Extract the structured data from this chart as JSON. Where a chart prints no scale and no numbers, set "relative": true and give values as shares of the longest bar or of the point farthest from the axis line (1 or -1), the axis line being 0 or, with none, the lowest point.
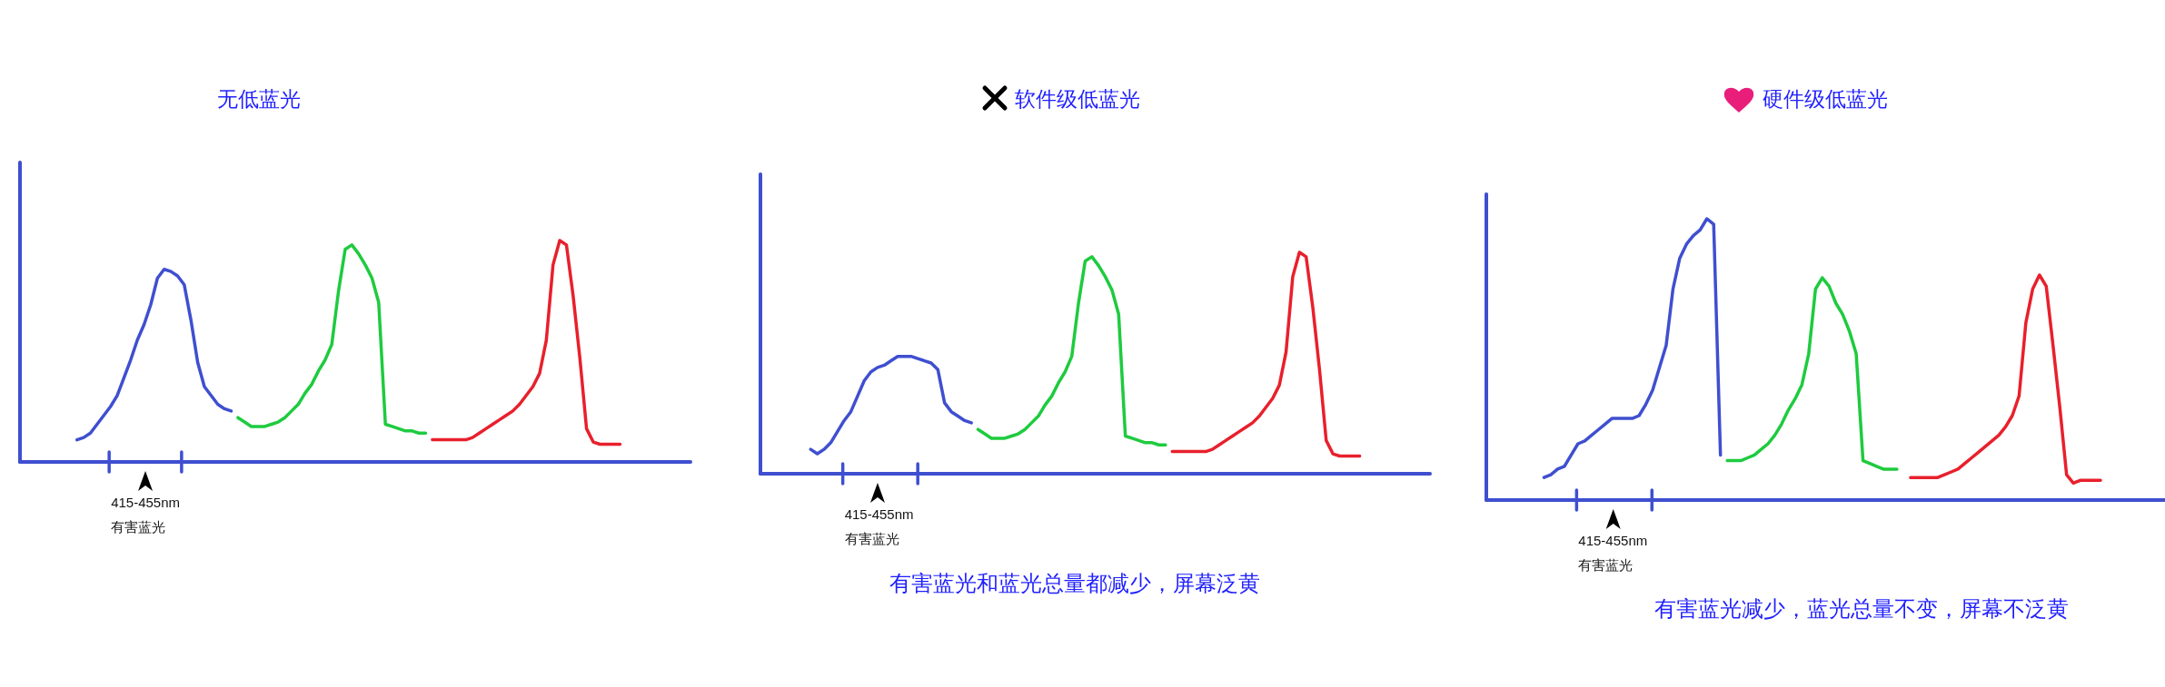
{
  "chart_data": [
    {
      "type": "line",
      "title": "无低蓝光",
      "relative": true,
      "categories": [
        null,
        null,
        null,
        null,
        null,
        null,
        null,
        null,
        null,
        null,
        null,
        null,
        null,
        null,
        null,
        null,
        null,
        null,
        null,
        null,
        null,
        null,
        null,
        null,
        null,
        null,
        null,
        null,
        null,
        null,
        null,
        null,
        null,
        null,
        null,
        null,
        null,
        null,
        null,
        null,
        null,
        null,
        null,
        null,
        null,
        null,
        null,
        null,
        null,
        null,
        null,
        null,
        null,
        null,
        null,
        null,
        null,
        null,
        null,
        null,
        null,
        null,
        null,
        null,
        null,
        null,
        null,
        null,
        null,
        null,
        null,
        null,
        null,
        null,
        null,
        null,
        null,
        null,
        null,
        null,
        null,
        null,
        null,
        null,
        null,
        null,
        null,
        null,
        null,
        null,
        null,
        null,
        null,
        null,
        null,
        null,
        null,
        null,
        null,
        null
      ],
      "series": [
        {
          "color": "#3f4fd0",
          "values": [
            null,
            null,
            null,
            null,
            null,
            null,
            null,
            null,
            0.1,
            0.11,
            0.13,
            0.17,
            0.21,
            0.25,
            0.3,
            0.38,
            0.46,
            0.55,
            0.62,
            0.71,
            0.83,
            0.87,
            0.86,
            0.84,
            0.8,
            0.64,
            0.45,
            0.34,
            0.3,
            0.26,
            0.24,
            0.23,
            null,
            null,
            null,
            null,
            null,
            null,
            null,
            null,
            null,
            null,
            null,
            null,
            null,
            null,
            null,
            null,
            null,
            null,
            null,
            null,
            null,
            null,
            null,
            null,
            null,
            null,
            null,
            null,
            null,
            null,
            null,
            null,
            null,
            null,
            null,
            null,
            null,
            null,
            null,
            null,
            null,
            null,
            null,
            null,
            null,
            null,
            null,
            null,
            null,
            null,
            null,
            null,
            null,
            null,
            null,
            null,
            null,
            null,
            null,
            null,
            null,
            null,
            null,
            null,
            null,
            null,
            null,
            null
          ]
        },
        {
          "color": "#1ecb3e",
          "values": [
            null,
            null,
            null,
            null,
            null,
            null,
            null,
            null,
            null,
            null,
            null,
            null,
            null,
            null,
            null,
            null,
            null,
            null,
            null,
            null,
            null,
            null,
            null,
            null,
            null,
            null,
            null,
            null,
            null,
            null,
            null,
            null,
            0.2,
            0.18,
            0.16,
            0.16,
            0.16,
            0.17,
            0.18,
            0.2,
            0.23,
            0.26,
            0.31,
            0.35,
            0.41,
            0.46,
            0.53,
            0.77,
            0.96,
            0.98,
            0.94,
            0.89,
            0.83,
            0.72,
            0.17,
            0.16,
            0.15,
            0.14,
            0.14,
            0.13,
            0.13,
            null,
            null,
            null,
            null,
            null,
            null,
            null,
            null,
            null,
            null,
            null,
            null,
            null,
            null,
            null,
            null,
            null,
            null,
            null,
            null,
            null,
            null,
            null,
            null,
            null,
            null,
            null,
            null,
            null,
            null,
            null,
            null,
            null,
            null,
            null,
            null,
            null,
            null,
            null
          ]
        },
        {
          "color": "#e8202c",
          "values": [
            null,
            null,
            null,
            null,
            null,
            null,
            null,
            null,
            null,
            null,
            null,
            null,
            null,
            null,
            null,
            null,
            null,
            null,
            null,
            null,
            null,
            null,
            null,
            null,
            null,
            null,
            null,
            null,
            null,
            null,
            null,
            null,
            null,
            null,
            null,
            null,
            null,
            null,
            null,
            null,
            null,
            null,
            null,
            null,
            null,
            null,
            null,
            null,
            null,
            null,
            null,
            null,
            null,
            null,
            null,
            null,
            null,
            null,
            null,
            null,
            null,
            0.1,
            0.1,
            0.1,
            0.1,
            0.1,
            0.1,
            0.11,
            0.13,
            0.15,
            0.17,
            0.19,
            0.21,
            0.23,
            0.26,
            0.3,
            0.34,
            0.4,
            0.55,
            0.89,
            1,
            0.98,
            0.75,
            0.47,
            0.15,
            0.09,
            0.08,
            0.08,
            0.08,
            0.08,
            null,
            null,
            null,
            null,
            null,
            null,
            null,
            null,
            null,
            null
          ]
        }
      ],
      "annotations": [
        "415-455nm",
        "有害蓝光"
      ]
    },
    {
      "type": "line",
      "title": "软件级低蓝光",
      "relative": true,
      "categories": [
        null,
        null,
        null,
        null,
        null,
        null,
        null,
        null,
        null,
        null,
        null,
        null,
        null,
        null,
        null,
        null,
        null,
        null,
        null,
        null,
        null,
        null,
        null,
        null,
        null,
        null,
        null,
        null,
        null,
        null,
        null,
        null,
        null,
        null,
        null,
        null,
        null,
        null,
        null,
        null,
        null,
        null,
        null,
        null,
        null,
        null,
        null,
        null,
        null,
        null,
        null,
        null,
        null,
        null,
        null,
        null,
        null,
        null,
        null,
        null,
        null,
        null,
        null,
        null,
        null,
        null,
        null,
        null,
        null,
        null,
        null,
        null,
        null,
        null,
        null,
        null,
        null,
        null,
        null,
        null,
        null,
        null,
        null,
        null,
        null,
        null,
        null,
        null,
        null,
        null,
        null,
        null,
        null,
        null,
        null,
        null,
        null,
        null,
        null,
        null
      ],
      "series": [
        {
          "color": "#3f4fd0",
          "values": [
            null,
            null,
            null,
            null,
            null,
            null,
            null,
            0.11,
            0.09,
            0.11,
            0.14,
            0.19,
            0.24,
            0.28,
            0.35,
            0.42,
            0.46,
            0.48,
            0.49,
            0.51,
            0.53,
            0.53,
            0.53,
            0.52,
            0.51,
            0.5,
            0.47,
            0.32,
            0.28,
            0.26,
            0.24,
            0.23,
            null,
            null,
            null,
            null,
            null,
            null,
            null,
            null,
            null,
            null,
            null,
            null,
            null,
            null,
            null,
            null,
            null,
            null,
            null,
            null,
            null,
            null,
            null,
            null,
            null,
            null,
            null,
            null,
            null,
            null,
            null,
            null,
            null,
            null,
            null,
            null,
            null,
            null,
            null,
            null,
            null,
            null,
            null,
            null,
            null,
            null,
            null,
            null,
            null,
            null,
            null,
            null,
            null,
            null,
            null,
            null,
            null,
            null,
            null,
            null,
            null,
            null,
            null,
            null,
            null,
            null,
            null,
            null
          ]
        },
        {
          "color": "#1ecb3e",
          "values": [
            null,
            null,
            null,
            null,
            null,
            null,
            null,
            null,
            null,
            null,
            null,
            null,
            null,
            null,
            null,
            null,
            null,
            null,
            null,
            null,
            null,
            null,
            null,
            null,
            null,
            null,
            null,
            null,
            null,
            null,
            null,
            null,
            0.2,
            0.18,
            0.16,
            0.16,
            0.16,
            0.17,
            0.18,
            0.2,
            0.23,
            0.26,
            0.31,
            0.35,
            0.41,
            0.46,
            0.53,
            0.77,
            0.96,
            0.98,
            0.94,
            0.89,
            0.83,
            0.72,
            0.17,
            0.16,
            0.15,
            0.14,
            0.14,
            0.13,
            0.13,
            null,
            null,
            null,
            null,
            null,
            null,
            null,
            null,
            null,
            null,
            null,
            null,
            null,
            null,
            null,
            null,
            null,
            null,
            null,
            null,
            null,
            null,
            null,
            null,
            null,
            null,
            null,
            null,
            null,
            null,
            null,
            null,
            null,
            null,
            null,
            null,
            null,
            null,
            null
          ]
        },
        {
          "color": "#e8202c",
          "values": [
            null,
            null,
            null,
            null,
            null,
            null,
            null,
            null,
            null,
            null,
            null,
            null,
            null,
            null,
            null,
            null,
            null,
            null,
            null,
            null,
            null,
            null,
            null,
            null,
            null,
            null,
            null,
            null,
            null,
            null,
            null,
            null,
            null,
            null,
            null,
            null,
            null,
            null,
            null,
            null,
            null,
            null,
            null,
            null,
            null,
            null,
            null,
            null,
            null,
            null,
            null,
            null,
            null,
            null,
            null,
            null,
            null,
            null,
            null,
            null,
            null,
            0.1,
            0.1,
            0.1,
            0.1,
            0.1,
            0.1,
            0.11,
            0.13,
            0.15,
            0.17,
            0.19,
            0.21,
            0.23,
            0.26,
            0.3,
            0.34,
            0.4,
            0.55,
            0.89,
            1,
            0.98,
            0.75,
            0.47,
            0.15,
            0.09,
            0.08,
            0.08,
            0.08,
            0.08,
            null,
            null,
            null,
            null,
            null,
            null,
            null,
            null,
            null,
            null
          ]
        }
      ],
      "annotations": [
        "415-455nm",
        "有害蓝光",
        "有害蓝光和蓝光总量都减少，屏幕泛黄"
      ]
    },
    {
      "type": "line",
      "title": "硬件级低蓝光",
      "relative": true,
      "categories": [
        null,
        null,
        null,
        null,
        null,
        null,
        null,
        null,
        null,
        null,
        null,
        null,
        null,
        null,
        null,
        null,
        null,
        null,
        null,
        null,
        null,
        null,
        null,
        null,
        null,
        null,
        null,
        null,
        null,
        null,
        null,
        null,
        null,
        null,
        null,
        null,
        null,
        null,
        null,
        null,
        null,
        null,
        null,
        null,
        null,
        null,
        null,
        null,
        null,
        null,
        null,
        null,
        null,
        null,
        null,
        null,
        null,
        null,
        null,
        null,
        null,
        null,
        null,
        null,
        null,
        null,
        null,
        null,
        null,
        null,
        null,
        null,
        null,
        null,
        null,
        null,
        null,
        null,
        null,
        null,
        null,
        null,
        null,
        null,
        null,
        null,
        null,
        null,
        null,
        null,
        null,
        null,
        null,
        null,
        null,
        null,
        null,
        null,
        null,
        null
      ],
      "series": [
        {
          "color": "#3f4fd0",
          "values": [
            null,
            null,
            null,
            null,
            null,
            null,
            null,
            null,
            0.08,
            0.09,
            0.11,
            0.12,
            0.16,
            0.2,
            0.21,
            0.23,
            0.25,
            0.27,
            0.29,
            0.29,
            0.29,
            0.29,
            0.3,
            0.34,
            0.39,
            0.47,
            0.55,
            0.75,
            0.86,
            0.91,
            0.94,
            0.96,
            1,
            0.98,
            0.16,
            null,
            null,
            null,
            null,
            null,
            null,
            null,
            null,
            null,
            null,
            null,
            null,
            null,
            null,
            null,
            null,
            null,
            null,
            null,
            null,
            null,
            null,
            null,
            null,
            null,
            null,
            null,
            null,
            null,
            null,
            null,
            null,
            null,
            null,
            null,
            null,
            null,
            null,
            null,
            null,
            null,
            null,
            null,
            null,
            null,
            null,
            null,
            null,
            null,
            null,
            null,
            null,
            null,
            null,
            null,
            null,
            null,
            null,
            null,
            null,
            null,
            null,
            null,
            null,
            null
          ]
        },
        {
          "color": "#1ecb3e",
          "values": [
            null,
            null,
            null,
            null,
            null,
            null,
            null,
            null,
            null,
            null,
            null,
            null,
            null,
            null,
            null,
            null,
            null,
            null,
            null,
            null,
            null,
            null,
            null,
            null,
            null,
            null,
            null,
            null,
            null,
            null,
            null,
            null,
            null,
            null,
            null,
            0.14,
            0.14,
            0.14,
            0.15,
            0.16,
            0.18,
            0.2,
            0.23,
            0.27,
            0.32,
            0.36,
            0.41,
            0.52,
            0.75,
            0.79,
            0.76,
            0.7,
            0.66,
            0.6,
            0.52,
            0.14,
            0.13,
            0.12,
            0.11,
            0.11,
            0.11,
            null,
            null,
            null,
            null,
            null,
            null,
            null,
            null,
            null,
            null,
            null,
            null,
            null,
            null,
            null,
            null,
            null,
            null,
            null,
            null,
            null,
            null,
            null,
            null,
            null,
            null,
            null,
            null,
            null,
            null,
            null,
            null,
            null,
            null,
            null,
            null,
            null,
            null,
            null
          ]
        },
        {
          "color": "#e8202c",
          "values": [
            null,
            null,
            null,
            null,
            null,
            null,
            null,
            null,
            null,
            null,
            null,
            null,
            null,
            null,
            null,
            null,
            null,
            null,
            null,
            null,
            null,
            null,
            null,
            null,
            null,
            null,
            null,
            null,
            null,
            null,
            null,
            null,
            null,
            null,
            null,
            null,
            null,
            null,
            null,
            null,
            null,
            null,
            null,
            null,
            null,
            null,
            null,
            null,
            null,
            null,
            null,
            null,
            null,
            null,
            null,
            null,
            null,
            null,
            null,
            null,
            null,
            null,
            0.08,
            0.08,
            0.08,
            0.08,
            0.08,
            0.09,
            0.1,
            0.11,
            0.13,
            0.15,
            0.17,
            0.19,
            0.21,
            0.23,
            0.26,
            0.3,
            0.37,
            0.63,
            0.75,
            0.8,
            0.76,
            0.55,
            0.33,
            0.09,
            0.06,
            0.07,
            0.07,
            0.07,
            0.07,
            null,
            null,
            null,
            null,
            null,
            null,
            null,
            null,
            null
          ]
        }
      ],
      "annotations": [
        "415-455nm",
        "有害蓝光",
        "有害蓝光减少，蓝光总量不变，屏幕不泛黄"
      ]
    }
  ]
}
